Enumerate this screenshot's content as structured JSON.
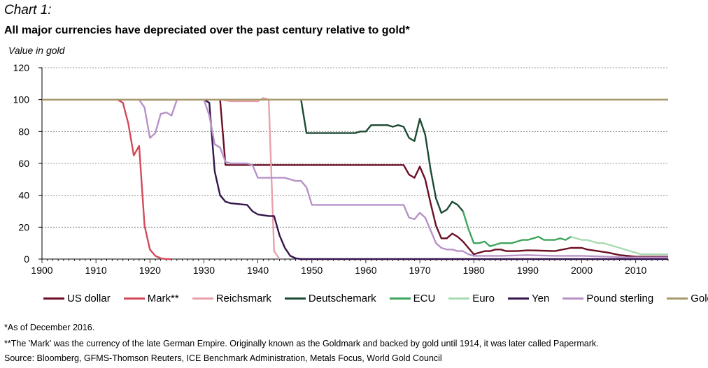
{
  "header": {
    "chart_label": "Chart 1:",
    "title": "All major currencies have depreciated over the past century relative to gold*",
    "ylabel": "Value in gold"
  },
  "footnotes": {
    "note1": "*As of December 2016.",
    "note2": "**The 'Mark' was the currency of the late German Empire. Originally known as the Goldmark and backed by gold until 1914, it was later called Papermark.",
    "source": "Source: Bloomberg, GFMS-Thomson Reuters, ICE Benchmark Administration, Metals Focus, World Gold Council"
  },
  "chart_data": {
    "type": "line",
    "xlim": [
      1900,
      2016
    ],
    "ylim": [
      0,
      120
    ],
    "x_ticks": [
      1900,
      1910,
      1920,
      1930,
      1940,
      1950,
      1960,
      1970,
      1980,
      1990,
      2000,
      2010
    ],
    "y_ticks": [
      0,
      20,
      40,
      60,
      80,
      100,
      120
    ],
    "grid": "horizontal dashed",
    "legend": "bottom",
    "series": [
      {
        "name": "US dollar",
        "color": "#6b0f24",
        "x": [
          1900,
          1933,
          1934,
          1967,
          1968,
          1969,
          1970,
          1971,
          1972,
          1973,
          1974,
          1975,
          1976,
          1977,
          1978,
          1979,
          1980,
          1981,
          1982,
          1983,
          1984,
          1985,
          1986,
          1987,
          1988,
          1990,
          1995,
          1998,
          2000,
          2001,
          2003,
          2005,
          2007,
          2010,
          2016
        ],
        "y": [
          100,
          100,
          59,
          59,
          53,
          51,
          58,
          50,
          35,
          21,
          13,
          13,
          16,
          14,
          11,
          7,
          3,
          4,
          5,
          5,
          6,
          6,
          5,
          5,
          5,
          5.5,
          5,
          7,
          7,
          6,
          5,
          4,
          2.5,
          1.5,
          1.5
        ]
      },
      {
        "name": "Mark**",
        "color": "#d24a5a",
        "x": [
          1900,
          1914,
          1915,
          1916,
          1917,
          1918,
          1919,
          1920,
          1921,
          1922,
          1923,
          1924
        ],
        "y": [
          100,
          100,
          98,
          85,
          65,
          71,
          21,
          6,
          2,
          0.5,
          0,
          0
        ]
      },
      {
        "name": "Reichsmark",
        "color": "#e8a1ac",
        "x": [
          1924,
          1930,
          1933,
          1935,
          1940,
          1941,
          1942,
          1943,
          1944
        ],
        "y": [
          100,
          100,
          100,
          99,
          99,
          101,
          100,
          5,
          0
        ]
      },
      {
        "name": "Deutschemark",
        "color": "#1c4b33",
        "x": [
          1948,
          1949,
          1958,
          1959,
          1960,
          1961,
          1962,
          1963,
          1964,
          1965,
          1966,
          1967,
          1968,
          1969,
          1970,
          1971,
          1972,
          1973,
          1974,
          1975,
          1976,
          1977,
          1978
        ],
        "y": [
          100,
          79,
          79,
          80,
          80,
          84,
          84,
          84,
          84,
          83,
          84,
          83,
          76,
          74,
          88,
          78,
          56,
          38,
          29,
          31,
          36,
          34,
          30
        ]
      },
      {
        "name": "ECU",
        "color": "#3fa55c",
        "x": [
          1978,
          1979,
          1980,
          1981,
          1982,
          1983,
          1984,
          1985,
          1986,
          1987,
          1988,
          1989,
          1990,
          1991,
          1992,
          1993,
          1994,
          1995,
          1996,
          1997,
          1998
        ],
        "y": [
          30,
          19,
          10,
          10,
          11,
          8,
          9,
          10,
          10,
          10,
          11,
          12,
          12,
          13,
          14,
          12,
          12,
          12,
          13,
          12,
          14
        ]
      },
      {
        "name": "Euro",
        "color": "#a8dcb0",
        "x": [
          1998,
          1999,
          2000,
          2001,
          2002,
          2003,
          2004,
          2005,
          2006,
          2007,
          2008,
          2009,
          2010,
          2011,
          2012,
          2013,
          2014,
          2015,
          2016
        ],
        "y": [
          14,
          13,
          12,
          12,
          11,
          10,
          10,
          9,
          8,
          7,
          6,
          5,
          4,
          3,
          3,
          3,
          3,
          3,
          3
        ]
      },
      {
        "name": "Yen",
        "color": "#35154d",
        "x": [
          1900,
          1930,
          1931,
          1932,
          1933,
          1934,
          1935,
          1938,
          1939,
          1940,
          1941,
          1942,
          1943,
          1944,
          1945,
          1946,
          1947,
          1948,
          1949,
          1960,
          1971,
          1990,
          2016
        ],
        "y": [
          100,
          100,
          98,
          55,
          40,
          36,
          35,
          34,
          30,
          28,
          27.5,
          27,
          27,
          15,
          7,
          2,
          0.5,
          0,
          0,
          0,
          0,
          0,
          0
        ]
      },
      {
        "name": "Pound sterling",
        "color": "#b792c8",
        "x": [
          1900,
          1918,
          1919,
          1920,
          1921,
          1922,
          1923,
          1924,
          1925,
          1929,
          1930,
          1931,
          1932,
          1933,
          1934,
          1935,
          1938,
          1939,
          1940,
          1945,
          1947,
          1948,
          1949,
          1950,
          1967,
          1968,
          1969,
          1970,
          1971,
          1972,
          1973,
          1974,
          1975,
          1976,
          1977,
          1978,
          1979,
          1980,
          1985,
          1990,
          1995,
          2000,
          2005,
          2008,
          2010,
          2016
        ],
        "y": [
          100,
          100,
          95,
          76,
          79,
          91,
          92,
          90,
          100,
          100,
          100,
          90,
          72,
          70,
          61,
          60,
          60,
          59,
          51,
          51,
          49,
          49,
          45,
          34,
          34,
          26,
          25,
          29,
          26,
          18,
          10,
          7,
          6,
          6,
          5,
          5,
          3,
          2,
          2,
          2.5,
          2,
          2,
          1.5,
          1,
          1,
          1
        ]
      },
      {
        "name": "Gold",
        "color": "#a79a6c",
        "x": [
          1900,
          2016
        ],
        "y": [
          100,
          100
        ]
      }
    ]
  }
}
